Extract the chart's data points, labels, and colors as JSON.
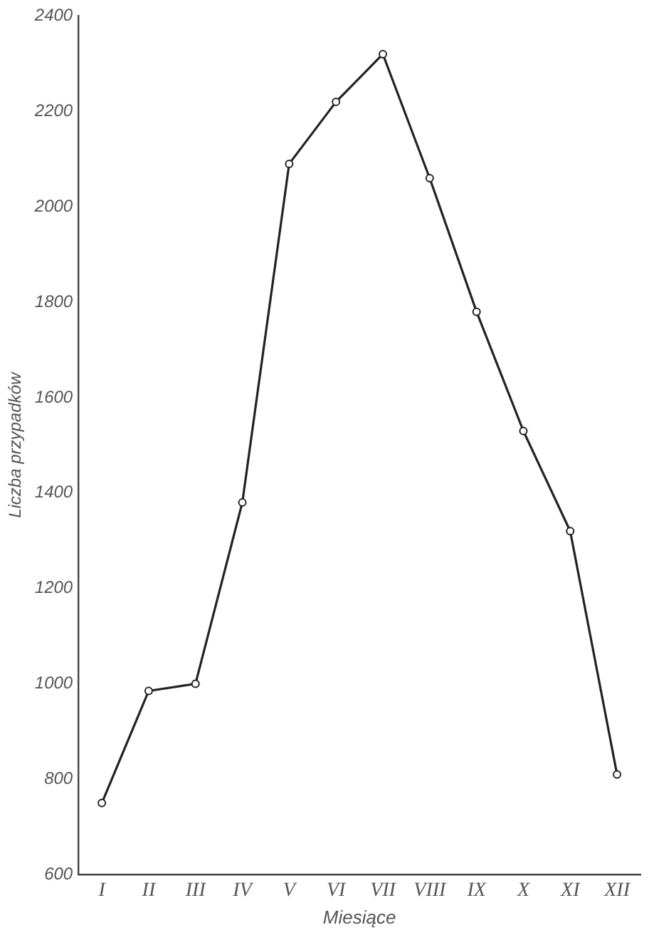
{
  "chart_data": {
    "type": "line",
    "xlabel": "Miesiące",
    "ylabel": "Liczba przypadków",
    "categories": [
      "I",
      "II",
      "III",
      "IV",
      "V",
      "VI",
      "VII",
      "VIII",
      "IX",
      "X",
      "XI",
      "XII"
    ],
    "series": [
      {
        "color": "#222222",
        "values": [
          750,
          985,
          1000,
          1380,
          2090,
          2220,
          2320,
          2060,
          1780,
          1530,
          1320,
          810
        ]
      }
    ],
    "ylim": [
      600,
      2400
    ],
    "yticks": [
      600,
      800,
      1000,
      1200,
      1400,
      1600,
      1800,
      2000,
      2200,
      2400
    ],
    "marker": "circle",
    "line_style": "solid",
    "grid": false,
    "legend": false
  }
}
